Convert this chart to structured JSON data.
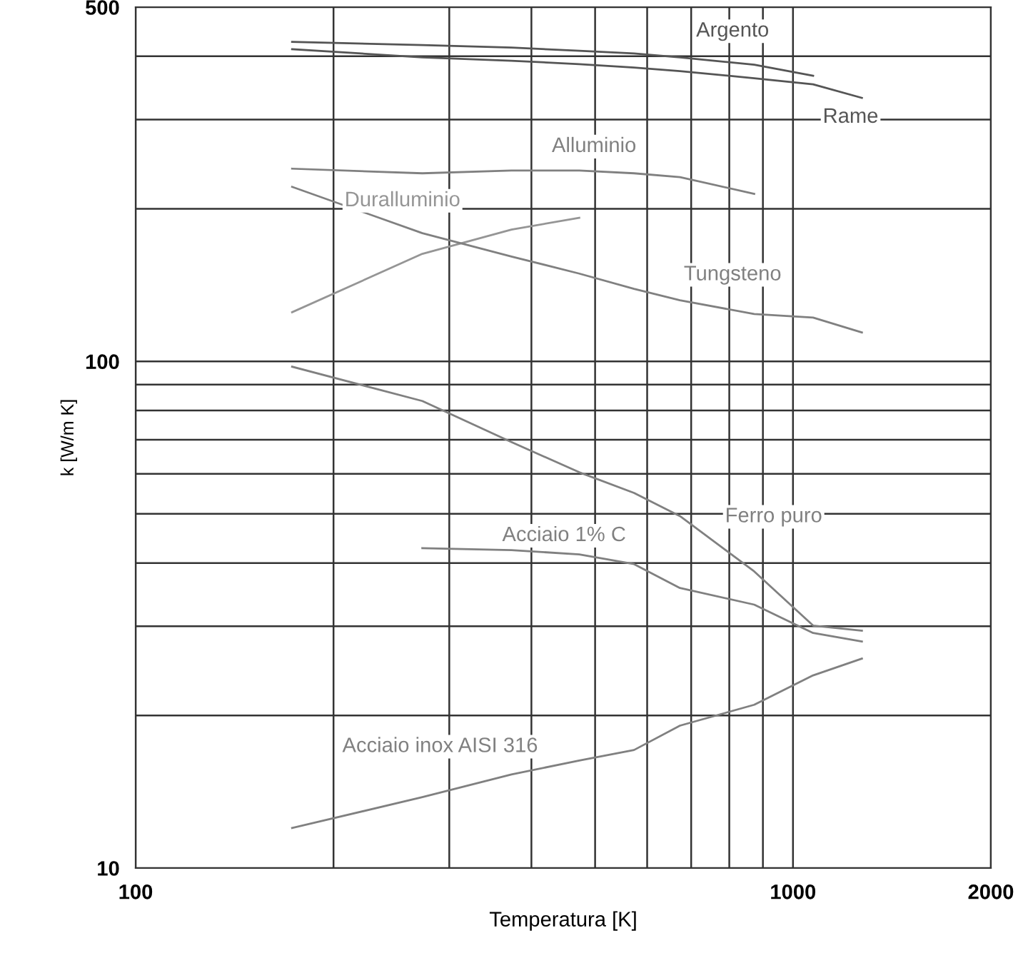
{
  "chart_data": {
    "type": "line",
    "xlabel": "Temperatura [K]",
    "ylabel": "k [W/m K]",
    "log": "xy",
    "grid": true,
    "marker": "none",
    "line_style": "solid",
    "xlim": [
      100,
      2000
    ],
    "ylim": [
      10,
      500
    ],
    "xticks": [
      100,
      {
        "value": 200,
        "label": null
      },
      {
        "value": 300,
        "label": null
      },
      {
        "value": 400,
        "label": null
      },
      {
        "value": 500,
        "label": null
      },
      {
        "value": 600,
        "label": null
      },
      {
        "value": 700,
        "label": null
      },
      {
        "value": 800,
        "label": null
      },
      {
        "value": 900,
        "label": null
      },
      1000,
      2000
    ],
    "yticks": [
      10,
      {
        "value": 20,
        "label": null
      },
      {
        "value": 30,
        "label": null
      },
      {
        "value": 40,
        "label": null
      },
      {
        "value": 50,
        "label": null
      },
      {
        "value": 60,
        "label": null
      },
      {
        "value": 70,
        "label": null
      },
      {
        "value": 80,
        "label": null
      },
      {
        "value": 90,
        "label": null
      },
      100,
      {
        "value": 200,
        "label": null
      },
      {
        "value": 300,
        "label": null
      },
      {
        "value": 400,
        "label": null
      },
      500
    ],
    "series": [
      {
        "name": "Argento",
        "color": "#555555",
        "x": [
          173,
          273,
          373,
          473,
          573,
          673,
          873,
          1073
        ],
        "values": [
          427,
          421,
          416,
          410,
          405,
          398,
          385,
          366
        ]
      },
      {
        "name": "Rame",
        "color": "#555555",
        "x": [
          173,
          273,
          373,
          473,
          573,
          673,
          873,
          1073,
          1273
        ],
        "values": [
          413,
          398,
          392,
          386,
          380,
          374,
          362,
          352,
          331
        ]
      },
      {
        "name": "Alluminio",
        "color": "#808080",
        "x": [
          173,
          273,
          373,
          473,
          573,
          673,
          873
        ],
        "values": [
          240,
          235,
          238,
          238,
          235,
          231,
          214
        ]
      },
      {
        "name": "Duralluminio",
        "color": "#959595",
        "x": [
          173,
          273,
          373,
          473
        ],
        "values": [
          125,
          163,
          182,
          192
        ]
      },
      {
        "name": "Tungsteno",
        "color": "#808080",
        "x": [
          173,
          273,
          373,
          473,
          573,
          673,
          873,
          1073,
          1273
        ],
        "values": [
          221,
          179,
          161,
          149,
          139,
          132,
          124,
          122,
          114
        ]
      },
      {
        "name": "Ferro puro",
        "color": "#808080",
        "x": [
          173,
          273,
          373,
          473,
          573,
          673,
          873,
          1073,
          1273
        ],
        "values": [
          97.6,
          83.5,
          69.3,
          60.4,
          55,
          49.5,
          38.5,
          30.1,
          29.4
        ]
      },
      {
        "name": "Acciaio 1% C",
        "color": "#808080",
        "x": [
          273,
          373,
          473,
          573,
          673,
          873,
          1073,
          1273
        ],
        "values": [
          42.8,
          42.4,
          41.6,
          39.8,
          35.7,
          33.1,
          29.1,
          28.0
        ]
      },
      {
        "name": "Acciaio inox AISI 316",
        "color": "#808080",
        "x": [
          173,
          273,
          373,
          473,
          573,
          673,
          873,
          1073,
          1273
        ],
        "values": [
          12.0,
          13.8,
          15.3,
          16.3,
          17.1,
          19.1,
          21.0,
          24.0,
          25.9
        ]
      }
    ]
  }
}
